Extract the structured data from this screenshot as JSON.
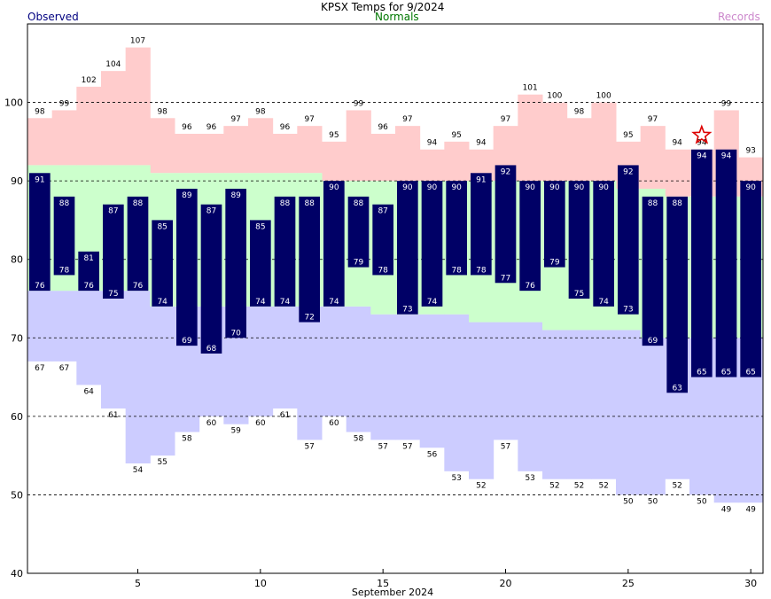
{
  "header": {
    "title": "KPSX Temps for 9/2024",
    "observed_label": "Observed",
    "normals_label": "Normals",
    "records_label": "Records"
  },
  "colors": {
    "observed": "#000066",
    "normals": "#ccffcc",
    "record_high": "#ffcccc",
    "record_low": "#ccccff",
    "observed_text": "#000080",
    "normals_text": "#007700",
    "records_text": "#cc88cc",
    "record_marker": "#dd0000"
  },
  "chart_data": {
    "type": "bar",
    "title": "KPSX Temps for 9/2024",
    "xlabel": "September 2024",
    "ylabel": "",
    "xlim": [
      1,
      30
    ],
    "ylim": [
      40,
      110
    ],
    "x_ticks": [
      5,
      10,
      15,
      20,
      25,
      30
    ],
    "y_ticks": [
      40,
      50,
      60,
      70,
      80,
      90,
      100
    ],
    "grid": true,
    "days": [
      1,
      2,
      3,
      4,
      5,
      6,
      7,
      8,
      9,
      10,
      11,
      12,
      13,
      14,
      15,
      16,
      17,
      18,
      19,
      20,
      21,
      22,
      23,
      24,
      25,
      26,
      27,
      28,
      29,
      30
    ],
    "series": [
      {
        "name": "Observed",
        "high": [
          91,
          88,
          81,
          87,
          88,
          85,
          89,
          87,
          89,
          85,
          88,
          88,
          90,
          88,
          87,
          90,
          90,
          90,
          91,
          92,
          90,
          90,
          90,
          90,
          92,
          88,
          88,
          94,
          94,
          90
        ],
        "low": [
          76,
          78,
          76,
          75,
          76,
          74,
          69,
          68,
          70,
          74,
          74,
          72,
          74,
          79,
          78,
          73,
          74,
          78,
          78,
          77,
          76,
          79,
          75,
          74,
          73,
          69,
          63,
          65,
          65,
          65
        ]
      },
      {
        "name": "Normals",
        "high": [
          92,
          92,
          92,
          92,
          92,
          91,
          91,
          91,
          91,
          91,
          91,
          91,
          90,
          90,
          90,
          90,
          90,
          90,
          90,
          90,
          90,
          90,
          90,
          90,
          89,
          89,
          88,
          88,
          88,
          88
        ],
        "low": [
          76,
          76,
          76,
          76,
          76,
          74,
          74,
          74,
          74,
          74,
          74,
          74,
          74,
          74,
          73,
          73,
          73,
          73,
          72,
          72,
          72,
          71,
          71,
          71,
          71,
          70,
          70,
          70,
          70,
          70
        ]
      },
      {
        "name": "Records",
        "high": [
          98,
          99,
          102,
          104,
          107,
          98,
          96,
          96,
          97,
          98,
          96,
          97,
          95,
          99,
          96,
          97,
          94,
          95,
          94,
          97,
          101,
          100,
          98,
          100,
          95,
          97,
          94,
          94,
          99,
          93
        ],
        "low": [
          67,
          67,
          64,
          61,
          54,
          55,
          58,
          60,
          59,
          60,
          61,
          57,
          60,
          58,
          57,
          57,
          56,
          53,
          52,
          57,
          53,
          52,
          52,
          52,
          50,
          50,
          52,
          50,
          49,
          49
        ]
      }
    ],
    "record_set_days": [
      28
    ]
  }
}
